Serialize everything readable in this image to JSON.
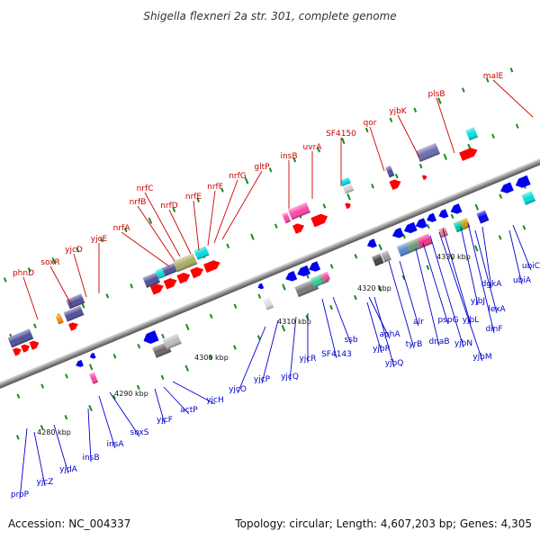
{
  "title": "Shigella flexneri 2a str. 301, complete genome",
  "footer": {
    "accession": "Accession: NC_004337",
    "summary": "Topology: circular; Length: 4,607,203 bp; Genes: 4,305"
  },
  "colors": {
    "upper_labels": "#cc0000",
    "lower_labels": "#0000cc",
    "genome_band": "#8c8c8c",
    "ticks": "#1a8a1a"
  },
  "scale_labels": [
    "4280 kbp",
    "4290 kbp",
    "4300 kbp",
    "4310 kbp",
    "4320 kbp",
    "4330 kbp"
  ],
  "upper_gene_labels": [
    "phnD",
    "soxR",
    "yjcD",
    "yjcE",
    "nrfA",
    "nrfB",
    "nrfC",
    "nrfD",
    "nrfE",
    "nrfF",
    "nrfG",
    "gltP",
    "insB",
    "uvrA",
    "SF4150",
    "qor",
    "yjbK",
    "plsB",
    "malE"
  ],
  "lower_gene_labels": [
    "proP",
    "yjcZ",
    "yjdA",
    "insB",
    "insA",
    "soxS",
    "yjcF",
    "actP",
    "yjcH",
    "yjcO",
    "yjcP",
    "yjcQ",
    "yjcR",
    "SF4143",
    "ssb",
    "aphA",
    "yjbR",
    "yjbQ",
    "tyrB",
    "alr",
    "dnaB",
    "pspG",
    "yjbN",
    "yjbM",
    "yjbL",
    "yjbJ",
    "dinF",
    "lexA",
    "dgkA",
    "ubiA",
    "ubiC"
  ]
}
